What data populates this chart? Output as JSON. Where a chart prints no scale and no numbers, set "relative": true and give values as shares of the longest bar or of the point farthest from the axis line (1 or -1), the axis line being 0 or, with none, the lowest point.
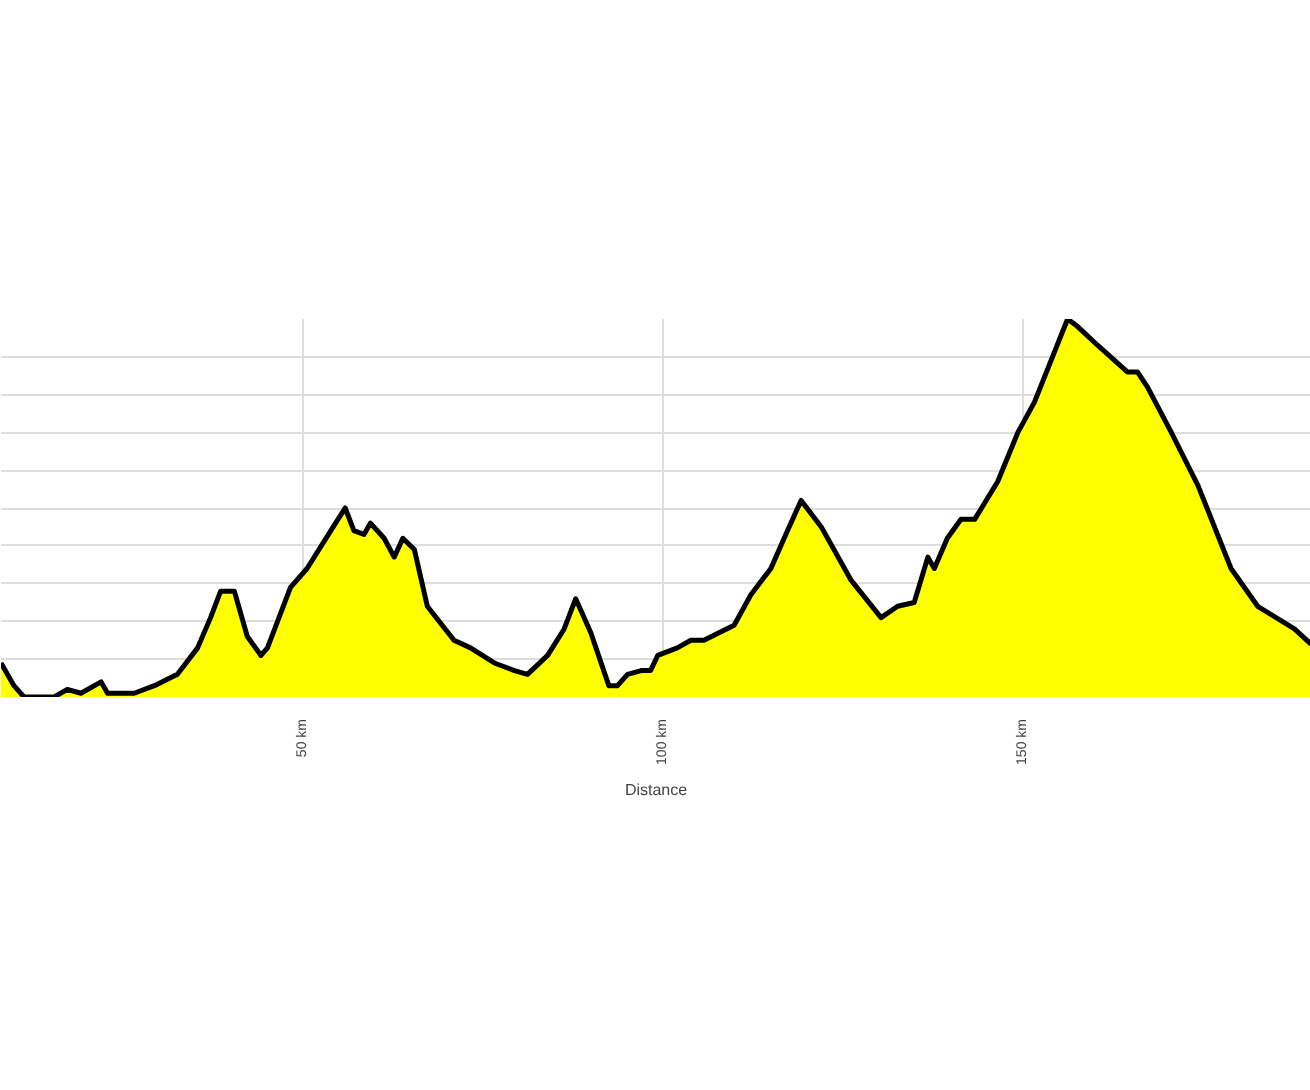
{
  "chart_data": {
    "type": "area",
    "relative": true,
    "xlabel": "Distance",
    "xlim": [
      8.1,
      190
    ],
    "xticks": [
      {
        "value": 50,
        "label": "50 km"
      },
      {
        "value": 100,
        "label": "100 km"
      },
      {
        "value": 150,
        "label": "150 km"
      }
    ],
    "grid": true,
    "x": [
      8.1,
      9.9,
      11.3,
      15.5,
      17.3,
      19.2,
      22.0,
      22.9,
      26.6,
      29.4,
      32.6,
      35.4,
      37.2,
      38.6,
      40.5,
      42.3,
      44.2,
      45.1,
      46.5,
      48.3,
      50.6,
      53.9,
      55.9,
      57.1,
      58.5,
      59.4,
      61.3,
      62.7,
      63.9,
      65.5,
      67.3,
      71.0,
      73.3,
      76.6,
      79.4,
      81.2,
      84.0,
      86.3,
      87.9,
      90.0,
      92.5,
      93.7,
      95.1,
      97.0,
      98.3,
      99.3,
      102.0,
      103.9,
      105.7,
      109.9,
      112.2,
      115.0,
      117.3,
      119.2,
      122.0,
      126.1,
      130.3,
      132.6,
      134.9,
      136.8,
      137.7,
      139.5,
      141.4,
      143.3,
      146.5,
      149.3,
      151.6,
      153.9,
      156.2,
      157.6,
      160.4,
      164.5,
      165.9,
      167.3,
      170.6,
      174.3,
      178.9,
      182.6,
      187.7,
      190.0
    ],
    "series": [
      {
        "color": "#ffff00",
        "values": [
          0.09,
          0.03,
          0.0,
          0.0,
          0.02,
          0.01,
          0.04,
          0.01,
          0.01,
          0.03,
          0.06,
          0.13,
          0.21,
          0.28,
          0.28,
          0.16,
          0.11,
          0.13,
          0.2,
          0.29,
          0.34,
          0.44,
          0.5,
          0.44,
          0.43,
          0.46,
          0.42,
          0.37,
          0.42,
          0.39,
          0.24,
          0.15,
          0.13,
          0.09,
          0.07,
          0.06,
          0.11,
          0.18,
          0.26,
          0.17,
          0.03,
          0.03,
          0.06,
          0.07,
          0.07,
          0.11,
          0.13,
          0.15,
          0.15,
          0.19,
          0.27,
          0.34,
          0.44,
          0.52,
          0.45,
          0.31,
          0.21,
          0.24,
          0.25,
          0.37,
          0.34,
          0.42,
          0.47,
          0.47,
          0.57,
          0.7,
          0.78,
          0.89,
          1.0,
          0.98,
          0.93,
          0.86,
          0.86,
          0.82,
          0.7,
          0.56,
          0.34,
          0.24,
          0.18,
          0.14
        ]
      }
    ]
  }
}
